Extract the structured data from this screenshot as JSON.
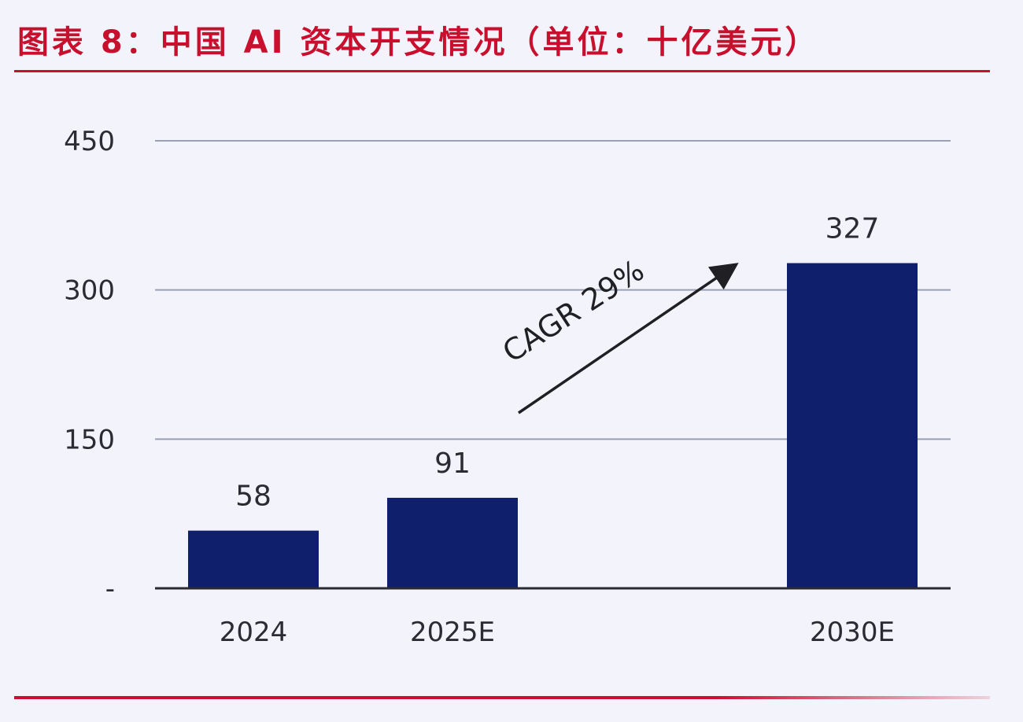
{
  "header": {
    "title": "图表 8：中国 AI 资本开支情况（单位：十亿美元）"
  },
  "colors": {
    "accent": "#c8102e",
    "bar": "#0f1f6b",
    "grid": "#9aa0b4",
    "axis": "#2a2a30",
    "background": "#f3f4fb"
  },
  "chart_data": {
    "type": "bar",
    "categories": [
      "2024",
      "2025E",
      "2030E"
    ],
    "values": [
      58,
      91,
      327
    ],
    "data_labels": [
      "58",
      "91",
      "327"
    ],
    "title": "",
    "xlabel": "",
    "ylabel": "",
    "ylim": [
      0,
      450
    ],
    "yticks": [
      0,
      150,
      300,
      450
    ],
    "ytick_labels": [
      "-",
      "150",
      "300",
      "450"
    ],
    "grid": true,
    "legend": "none",
    "annotation": {
      "text": "CAGR 29%",
      "type": "arrow",
      "from_category": "2025E",
      "to_category": "2030E"
    }
  }
}
